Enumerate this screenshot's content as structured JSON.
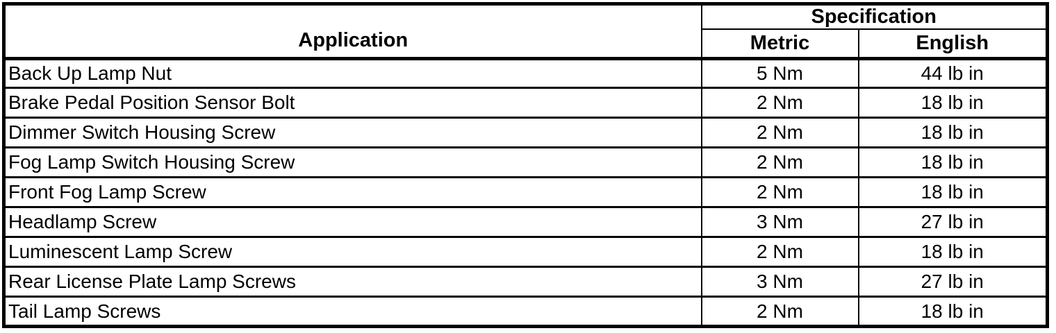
{
  "table": {
    "header": {
      "application": "Application",
      "specification": "Specification",
      "metric": "Metric",
      "english": "English"
    },
    "rows": [
      {
        "application": "Back Up Lamp Nut",
        "metric": "5 Nm",
        "english": "44 lb in"
      },
      {
        "application": "Brake Pedal Position Sensor Bolt",
        "metric": "2 Nm",
        "english": "18 lb in"
      },
      {
        "application": "Dimmer Switch Housing Screw",
        "metric": "2 Nm",
        "english": "18 lb in"
      },
      {
        "application": "Fog Lamp Switch Housing Screw",
        "metric": "2 Nm",
        "english": "18 lb in"
      },
      {
        "application": "Front Fog Lamp Screw",
        "metric": "2 Nm",
        "english": "18 lb in"
      },
      {
        "application": "Headlamp Screw",
        "metric": "3 Nm",
        "english": "27 lb in"
      },
      {
        "application": "Luminescent Lamp Screw",
        "metric": "2 Nm",
        "english": "18 lb in"
      },
      {
        "application": "Rear License Plate Lamp Screws",
        "metric": "3 Nm",
        "english": "27 lb in"
      },
      {
        "application": "Tail Lamp Screws",
        "metric": "2 Nm",
        "english": "18 lb in"
      }
    ],
    "colors": {
      "border": "#000000",
      "background": "#ffffff",
      "text": "#000000"
    }
  }
}
